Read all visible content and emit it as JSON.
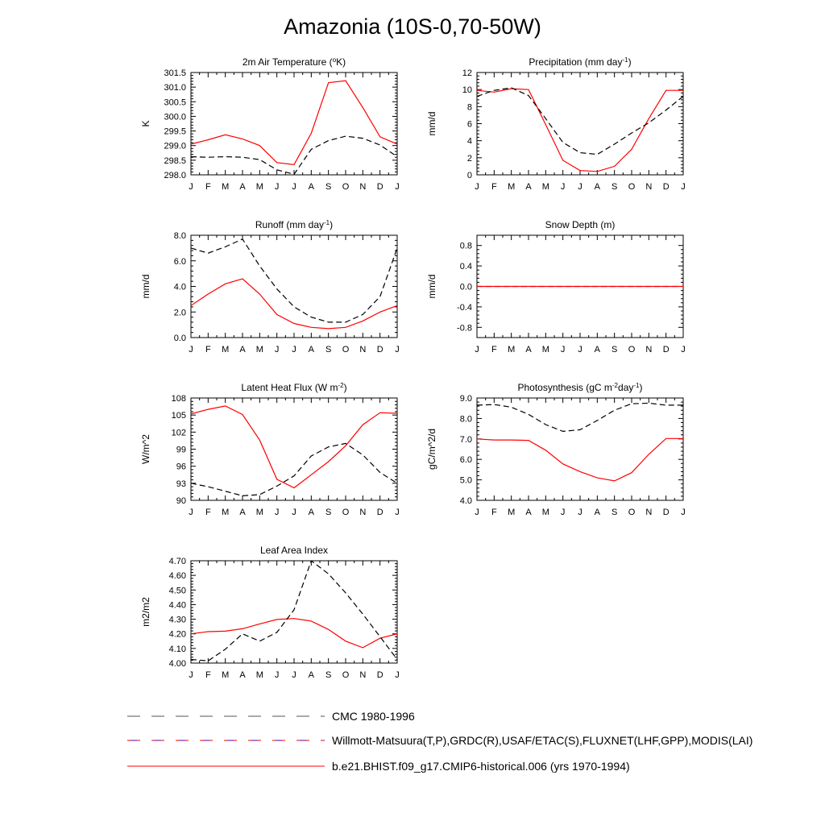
{
  "title": "Amazonia (10S-0,70-50W)",
  "colors": {
    "model": "#ff0000",
    "obs": "#000000",
    "obs_alt": "#0000ff",
    "axis": "#000000"
  },
  "legend": [
    {
      "label": "CMC 1980-1996",
      "style": "dashed-black"
    },
    {
      "label": "Willmott-Matsuura(T,P),GRDC(R),USAF/ETAC(S),FLUXNET(LHF,GPP),MODIS(LAI)",
      "style": "dashed-red-blue"
    },
    {
      "label": "b.e21.BHIST.f09_g17.CMIP6-historical.006 (yrs 1970-1994)",
      "style": "solid-red"
    }
  ],
  "chart_data": [
    {
      "type": "line",
      "title": "2m Air Temperature (°K)",
      "title_base": "2m Air Temperature (",
      "title_sup": "o",
      "title_rest": "K)",
      "ylabel": "K",
      "categories": [
        "J",
        "F",
        "M",
        "A",
        "M",
        "J",
        "J",
        "A",
        "S",
        "O",
        "N",
        "D",
        "J"
      ],
      "ylim": [
        298.0,
        301.5
      ],
      "yticks": [
        "298.0",
        "298.5",
        "299.0",
        "299.5",
        "300.0",
        "300.5",
        "301.0",
        "301.5"
      ],
      "series": [
        {
          "name": "model",
          "style": "solid",
          "values": [
            299.05,
            299.2,
            299.37,
            299.23,
            299.0,
            298.42,
            298.35,
            299.42,
            301.15,
            301.22,
            300.3,
            299.3,
            299.05
          ]
        },
        {
          "name": "obs",
          "style": "dashed",
          "values": [
            298.62,
            298.6,
            298.62,
            298.6,
            298.52,
            298.17,
            298.02,
            298.87,
            299.17,
            299.32,
            299.25,
            299.02,
            298.62
          ]
        }
      ]
    },
    {
      "type": "line",
      "title": "Precipitation (mm day-1)",
      "title_base": "Precipitation (mm day",
      "title_sup": "-1",
      "title_rest": ")",
      "ylabel": "mm/d",
      "categories": [
        "J",
        "F",
        "M",
        "A",
        "M",
        "J",
        "J",
        "A",
        "S",
        "O",
        "N",
        "D",
        "J"
      ],
      "ylim": [
        0,
        12
      ],
      "yticks": [
        "0",
        "2",
        "4",
        "6",
        "8",
        "10",
        "12"
      ],
      "series": [
        {
          "name": "model",
          "style": "solid",
          "values": [
            9.9,
            9.7,
            10.1,
            10.0,
            5.9,
            1.7,
            0.5,
            0.4,
            1.0,
            3.0,
            6.6,
            9.9,
            9.9
          ]
        },
        {
          "name": "obs",
          "style": "dashed",
          "values": [
            9.2,
            9.9,
            10.2,
            9.3,
            6.6,
            3.8,
            2.6,
            2.4,
            3.6,
            4.9,
            6.1,
            7.6,
            9.2
          ]
        }
      ]
    },
    {
      "type": "line",
      "title": "Runoff (mm day-1)",
      "title_base": "Runoff (mm day",
      "title_sup": "-1",
      "title_rest": ")",
      "ylabel": "mm/d",
      "categories": [
        "J",
        "F",
        "M",
        "A",
        "M",
        "J",
        "J",
        "A",
        "S",
        "O",
        "N",
        "D",
        "J"
      ],
      "ylim": [
        0,
        8
      ],
      "yticks": [
        "0.0",
        "2.0",
        "4.0",
        "6.0",
        "8.0"
      ],
      "series": [
        {
          "name": "model",
          "style": "solid",
          "values": [
            2.5,
            3.4,
            4.2,
            4.6,
            3.4,
            1.8,
            1.1,
            0.8,
            0.7,
            0.8,
            1.3,
            2.0,
            2.5
          ]
        },
        {
          "name": "obs",
          "style": "dashed",
          "values": [
            7.0,
            6.6,
            7.1,
            7.7,
            5.6,
            3.8,
            2.4,
            1.6,
            1.2,
            1.2,
            1.8,
            3.2,
            7.0
          ]
        }
      ]
    },
    {
      "type": "line",
      "title": "Snow Depth (m)",
      "title_base": "Snow Depth (m)",
      "title_sup": "",
      "title_rest": "",
      "ylabel": "mm/d",
      "categories": [
        "J",
        "F",
        "M",
        "A",
        "M",
        "J",
        "J",
        "A",
        "S",
        "O",
        "N",
        "D",
        "J"
      ],
      "ylim": [
        -1.0,
        1.0
      ],
      "yticks": [
        "-0.8",
        "-0.4",
        "0.0",
        "0.4",
        "0.8"
      ],
      "series": [
        {
          "name": "obs_alt",
          "style": "dashed",
          "values": [
            0,
            0,
            0,
            0,
            0,
            0,
            0,
            0,
            0,
            0,
            0,
            0,
            0
          ]
        },
        {
          "name": "model",
          "style": "solid",
          "values": [
            0,
            0,
            0,
            0,
            0,
            0,
            0,
            0,
            0,
            0,
            0,
            0,
            0
          ]
        }
      ]
    },
    {
      "type": "line",
      "title": "Latent Heat Flux (W m-2)",
      "title_base": "Latent Heat Flux (W m",
      "title_sup": "-2",
      "title_rest": ")",
      "ylabel": "W/m^2",
      "categories": [
        "J",
        "F",
        "M",
        "A",
        "M",
        "J",
        "J",
        "A",
        "S",
        "O",
        "N",
        "D",
        "J"
      ],
      "ylim": [
        90,
        108
      ],
      "yticks": [
        "90",
        "93",
        "96",
        "99",
        "102",
        "105",
        "108"
      ],
      "series": [
        {
          "name": "model",
          "style": "solid",
          "values": [
            105.2,
            106.0,
            106.6,
            105.1,
            100.6,
            93.7,
            92.2,
            94.5,
            96.8,
            99.6,
            103.3,
            105.4,
            105.3
          ]
        },
        {
          "name": "obs",
          "style": "dashed",
          "values": [
            93.0,
            92.4,
            91.6,
            90.8,
            91.0,
            92.5,
            94.3,
            97.8,
            99.4,
            100.0,
            98.0,
            94.9,
            93.0
          ]
        }
      ]
    },
    {
      "type": "line",
      "title": "Photosynthesis (gC m-2day-1)",
      "title_base": "Photosynthesis (gC m",
      "title_sup": "-2",
      "title_rest": "day",
      "title_sup2": "-1",
      "title_rest2": ")",
      "ylabel": "gC/m^2/d",
      "categories": [
        "J",
        "F",
        "M",
        "A",
        "M",
        "J",
        "J",
        "A",
        "S",
        "O",
        "N",
        "D",
        "J"
      ],
      "ylim": [
        4.0,
        9.0
      ],
      "yticks": [
        "4.0",
        "5.0",
        "6.0",
        "7.0",
        "8.0",
        "9.0"
      ],
      "series": [
        {
          "name": "model",
          "style": "solid",
          "values": [
            7.0,
            6.95,
            6.95,
            6.93,
            6.45,
            5.78,
            5.4,
            5.1,
            4.95,
            5.35,
            6.25,
            7.02,
            7.02
          ]
        },
        {
          "name": "obs",
          "style": "dashed",
          "values": [
            8.65,
            8.68,
            8.55,
            8.2,
            7.7,
            7.37,
            7.45,
            7.9,
            8.4,
            8.72,
            8.75,
            8.65,
            8.65
          ]
        }
      ]
    },
    {
      "type": "line",
      "title": "Leaf Area Index",
      "title_base": "Leaf Area Index",
      "title_sup": "",
      "title_rest": "",
      "ylabel": "m2/m2",
      "categories": [
        "J",
        "F",
        "M",
        "A",
        "M",
        "J",
        "J",
        "A",
        "S",
        "O",
        "N",
        "D",
        "J"
      ],
      "ylim": [
        4.0,
        4.7
      ],
      "yticks": [
        "4.00",
        "4.10",
        "4.20",
        "4.30",
        "4.40",
        "4.50",
        "4.60",
        "4.70"
      ],
      "series": [
        {
          "name": "model",
          "style": "solid",
          "values": [
            4.2,
            4.215,
            4.218,
            4.235,
            4.268,
            4.298,
            4.305,
            4.287,
            4.23,
            4.15,
            4.105,
            4.17,
            4.2
          ]
        },
        {
          "name": "obs",
          "style": "dashed",
          "values": [
            4.025,
            4.015,
            4.095,
            4.2,
            4.15,
            4.21,
            4.365,
            4.7,
            4.61,
            4.48,
            4.335,
            4.18,
            4.025
          ]
        }
      ]
    }
  ]
}
